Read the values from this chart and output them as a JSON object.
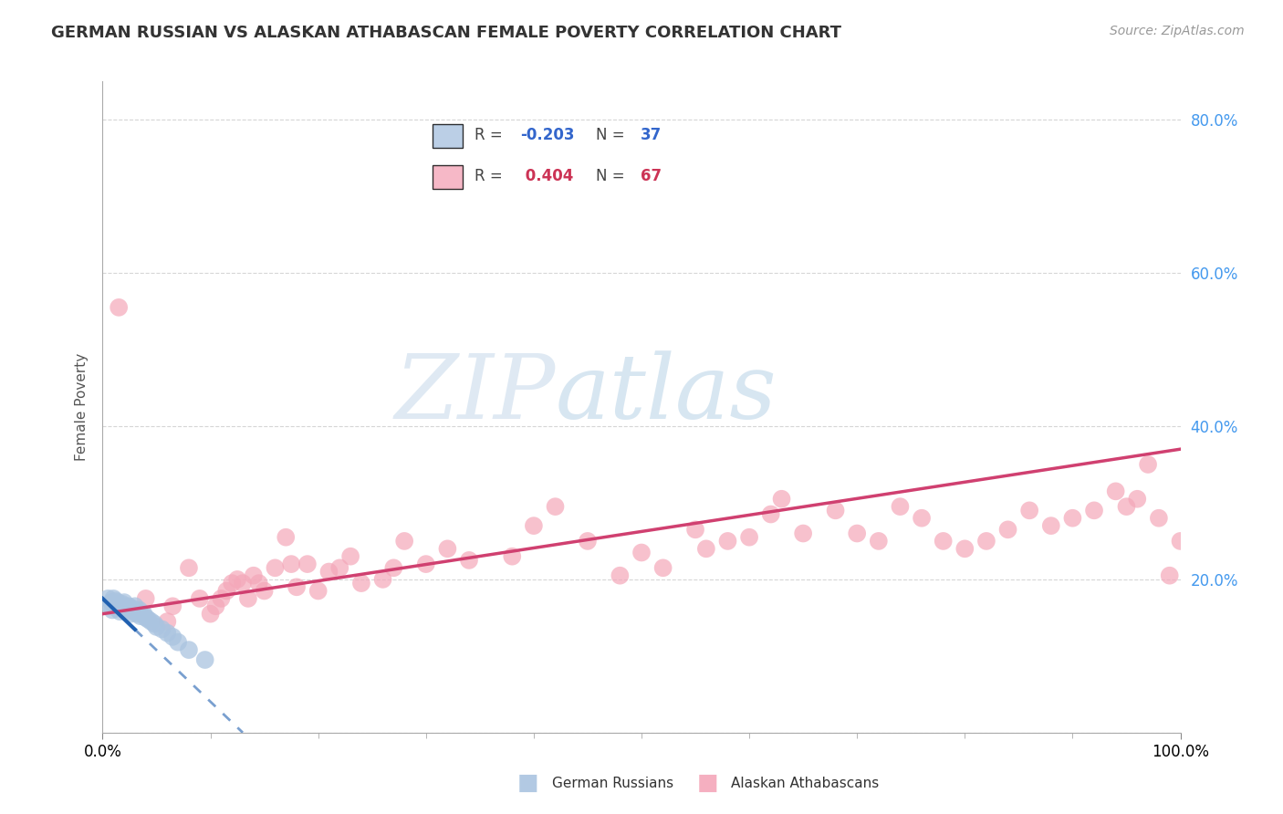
{
  "title": "GERMAN RUSSIAN VS ALASKAN ATHABASCAN FEMALE POVERTY CORRELATION CHART",
  "source": "Source: ZipAtlas.com",
  "ylabel": "Female Poverty",
  "xlim": [
    0,
    1.0
  ],
  "ylim": [
    0,
    0.85
  ],
  "background_color": "#ffffff",
  "grid_color": "#cccccc",
  "series1_color": "#aac4e0",
  "series2_color": "#f4a7b9",
  "series1_edge": "none",
  "series2_edge": "none",
  "series1_label": "German Russians",
  "series2_label": "Alaskan Athabascans",
  "series1_R": "-0.203",
  "series1_N": "37",
  "series2_R": "0.404",
  "series2_N": "67",
  "trendline1_color": "#2060b0",
  "trendline2_color": "#d04070",
  "legend_text_color1": "#3366cc",
  "legend_text_color2": "#cc3355",
  "series1_x": [
    0.005,
    0.007,
    0.008,
    0.009,
    0.01,
    0.01,
    0.012,
    0.013,
    0.014,
    0.015,
    0.016,
    0.018,
    0.02,
    0.02,
    0.022,
    0.023,
    0.024,
    0.025,
    0.026,
    0.028,
    0.03,
    0.03,
    0.032,
    0.034,
    0.035,
    0.038,
    0.04,
    0.042,
    0.045,
    0.048,
    0.05,
    0.055,
    0.06,
    0.065,
    0.07,
    0.08,
    0.095
  ],
  "series1_y": [
    0.175,
    0.165,
    0.17,
    0.16,
    0.175,
    0.168,
    0.172,
    0.162,
    0.17,
    0.165,
    0.158,
    0.168,
    0.16,
    0.17,
    0.162,
    0.158,
    0.165,
    0.16,
    0.155,
    0.162,
    0.158,
    0.165,
    0.155,
    0.16,
    0.152,
    0.155,
    0.15,
    0.148,
    0.145,
    0.142,
    0.138,
    0.135,
    0.13,
    0.125,
    0.118,
    0.108,
    0.095
  ],
  "series2_x": [
    0.015,
    0.04,
    0.06,
    0.065,
    0.08,
    0.09,
    0.1,
    0.105,
    0.11,
    0.115,
    0.12,
    0.125,
    0.13,
    0.135,
    0.14,
    0.145,
    0.15,
    0.16,
    0.17,
    0.175,
    0.18,
    0.19,
    0.2,
    0.21,
    0.22,
    0.23,
    0.24,
    0.26,
    0.27,
    0.28,
    0.3,
    0.32,
    0.34,
    0.38,
    0.4,
    0.42,
    0.45,
    0.48,
    0.5,
    0.52,
    0.55,
    0.56,
    0.58,
    0.6,
    0.62,
    0.63,
    0.65,
    0.68,
    0.7,
    0.72,
    0.74,
    0.76,
    0.78,
    0.8,
    0.82,
    0.84,
    0.86,
    0.88,
    0.9,
    0.92,
    0.94,
    0.95,
    0.96,
    0.97,
    0.98,
    0.99,
    1.0
  ],
  "series2_y": [
    0.555,
    0.175,
    0.145,
    0.165,
    0.215,
    0.175,
    0.155,
    0.165,
    0.175,
    0.185,
    0.195,
    0.2,
    0.195,
    0.175,
    0.205,
    0.195,
    0.185,
    0.215,
    0.255,
    0.22,
    0.19,
    0.22,
    0.185,
    0.21,
    0.215,
    0.23,
    0.195,
    0.2,
    0.215,
    0.25,
    0.22,
    0.24,
    0.225,
    0.23,
    0.27,
    0.295,
    0.25,
    0.205,
    0.235,
    0.215,
    0.265,
    0.24,
    0.25,
    0.255,
    0.285,
    0.305,
    0.26,
    0.29,
    0.26,
    0.25,
    0.295,
    0.28,
    0.25,
    0.24,
    0.25,
    0.265,
    0.29,
    0.27,
    0.28,
    0.29,
    0.315,
    0.295,
    0.305,
    0.35,
    0.28,
    0.205,
    0.25
  ],
  "trendline2_x_start": 0.0,
  "trendline2_x_end": 1.0,
  "trendline2_y_start": 0.155,
  "trendline2_y_end": 0.37,
  "trendline1_solid_x_start": 0.0,
  "trendline1_solid_x_end": 0.03,
  "trendline1_dashed_x_start": 0.03,
  "trendline1_dashed_x_end": 0.13,
  "trendline1_y_start": 0.175,
  "trendline1_y_end": 0.0
}
